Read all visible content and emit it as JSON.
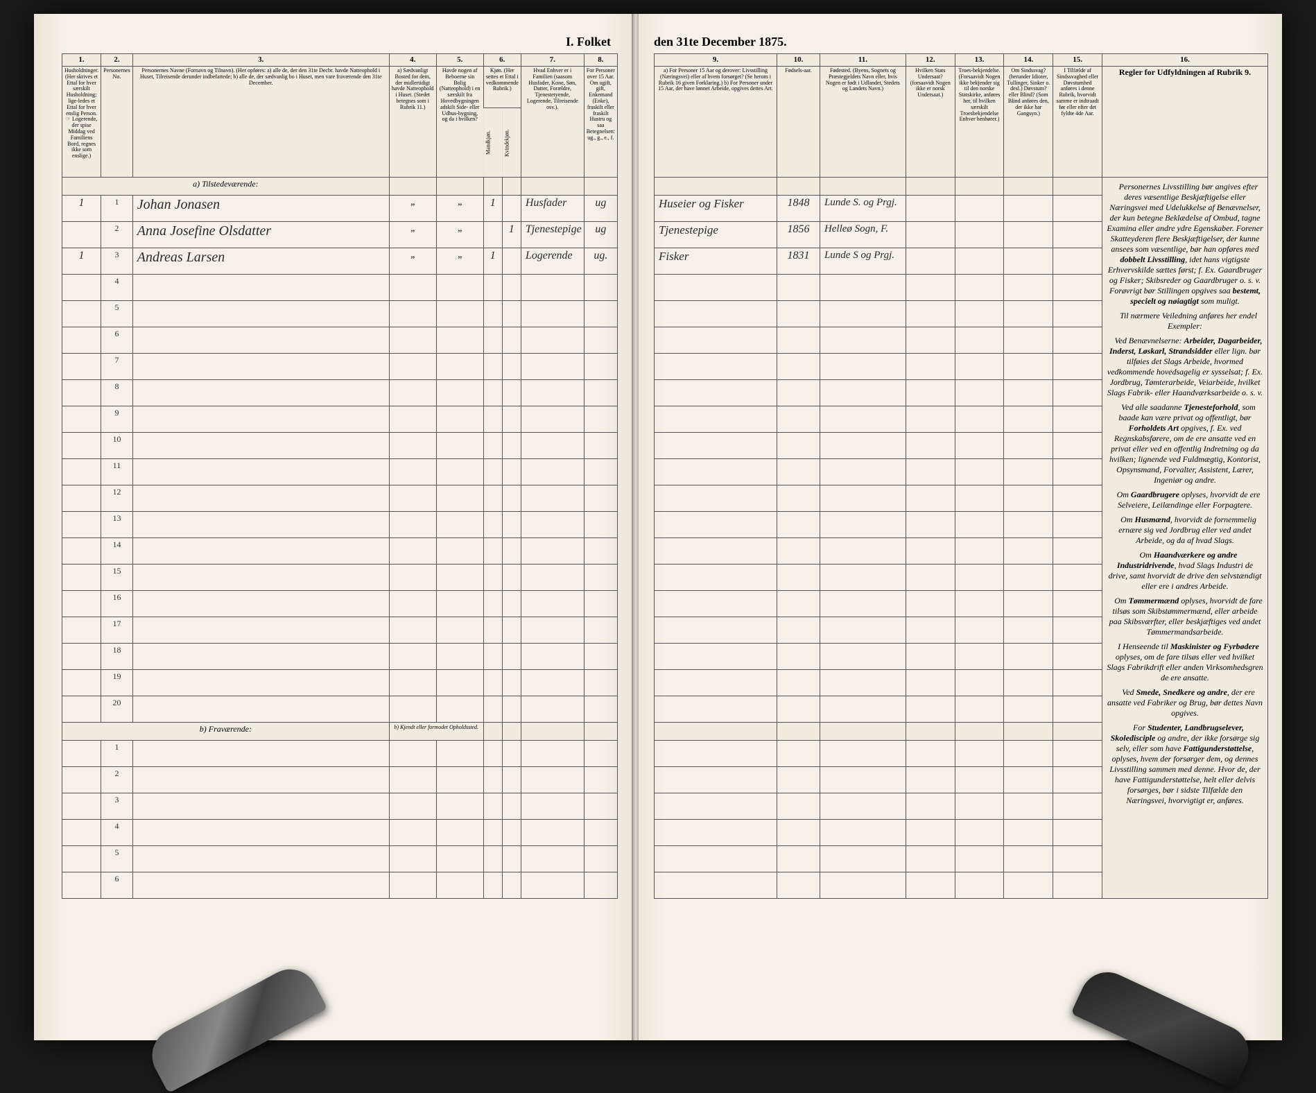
{
  "title_left": "I. Folket",
  "title_right": "den 31te December 1875.",
  "col_numbers_left": [
    "1.",
    "2.",
    "3.",
    "4.",
    "5.",
    "6.",
    "7.",
    "8."
  ],
  "col_numbers_right": [
    "9.",
    "10.",
    "11.",
    "12.",
    "13.",
    "14.",
    "15.",
    "16."
  ],
  "headers_left": {
    "c1": "Husholdninger.\n(Her skrives et Ettal for hver særskilt Husholdning; lige-ledes et Ettal for hver enslig Person.\n☞ Logerende, der spise Middag ved Familiens Bord, regnes ikke som enslige.)",
    "c2": "Personernes No.",
    "c3": "Personernes Navne (Fornavn og Tilnavn).\n(Her opføres:\na) alle de, der den 31te Decbr. havde Natteophold i Huset, Tilreisende derunder indbefattede;\nb) alle de, der sædvanlig bo i Huset, men vare fraværende den 31te December.",
    "c4": "a) Sædvanligt Bosted for dem, der midlertidigt havde Natteophold i Huset. (Stedet betegnes som i Rubrik 11.)",
    "c5": "Havde nogen af Beboerne sin Bolig (Natteophold) i en særskilt fra Hovedbygningen adskilt Side- eller Udhus-bygning, og da i hvilken?",
    "c6": "Kjøn. (Her settes et Ettal i vedkommende Rubrik.)",
    "c6a": "Mandkjøn.",
    "c6b": "Kvindekjøn.",
    "c7": "Hvad Enhver er i Familien\n(saasom Husfader, Kone, Søn, Datter, Forældre, Tjenestetyende, Logerende, Tilreisende osv.).",
    "c8": "For Personer over 15 Aar. Om ugift, gift, Enkemand (Enke), fraskilt eller fraskilt Hustru og saa Betegnelsen: ug., g., e., f."
  },
  "headers_right": {
    "c9": "a) For Personer 15 Aar og derover: Livsstilling (Næringsvei) eller af hvem forsørget? (Se herom i Rubrik 16 given Forklaring.)\nb) For Personer under 15 Aar, der have lønnet Arbeide, opgives dettes Art.",
    "c10": "Fødsels-aar.",
    "c11": "Fødested.\n(Byens, Sognets og Præstegjeldets Navn eller, hvis Nogen er født i Udlandet, Stedets og Landets Navn.)",
    "c12": "Hvilken Stats Undersaat?\n(forsaavidt Nogen ikke er norsk Undersaat.)",
    "c13": "Troes-bekjendelse. (Forsaavidt Nogen ikke bekjender sig til den norske Statskirke, anføres her, til hvilken særskilt Troesbekjendelse Enhver henhører.)",
    "c14": "Om Sindssvag? (herunder Idioter, Tullinger, Sinker o. desl.) Døvstum? eller Blind? (Som Blind anføres den, der ikke har Gangsyn.)",
    "c15": "I Tilfælde af Sindssvaghed eller Døvstumhed anføres i denne Rubrik, hvorvidt samme er indtraadt før eller efter det fyldte 4de Aar.",
    "c16": "Regler for Udfyldningen\naf\nRubrik 9."
  },
  "section_a": "a) Tilstedeværende:",
  "section_b": "b) Fraværende:",
  "section_b_note": "b) Kjendt eller formodet Opholdssted.",
  "rows_left": [
    {
      "n": "1",
      "hh": "1",
      "name": "Johan Jonasen",
      "c4": "„",
      "c5": "„",
      "m": "1",
      "k": "",
      "fam": "Husfader",
      "stat": "ug"
    },
    {
      "n": "2",
      "hh": "",
      "name": "Anna Josefine Olsdatter",
      "c4": "„",
      "c5": "„",
      "m": "",
      "k": "1",
      "fam": "Tjenestepige",
      "stat": "ug"
    },
    {
      "n": "3",
      "hh": "1",
      "name": "Andreas Larsen",
      "c4": "„",
      "c5": "„",
      "m": "1",
      "k": "",
      "fam": "Logerende",
      "stat": "ug."
    }
  ],
  "rows_right": [
    {
      "occ": "Huseier og Fisker",
      "year": "1848",
      "place": "Lunde S. og Prgj."
    },
    {
      "occ": "Tjenestepige",
      "year": "1856",
      "place": "Helleø Sogn, F."
    },
    {
      "occ": "Fisker",
      "year": "1831",
      "place": "Lunde S og Prgj."
    }
  ],
  "empty_rows_a": [
    "4",
    "5",
    "6",
    "7",
    "8",
    "9",
    "10",
    "11",
    "12",
    "13",
    "14",
    "15",
    "16",
    "17",
    "18",
    "19",
    "20"
  ],
  "empty_rows_b": [
    "1",
    "2",
    "3",
    "4",
    "5",
    "6"
  ],
  "rules_text": [
    "Personernes Livsstilling bør angives efter deres væsentlige Beskjæftigelse eller Næringsvei med Udelukkelse af Benævnelser, der kun betegne Beklædelse af Ombud, tagne Examina eller andre ydre Egenskaber. Forener Skatteyderen flere Beskjæftigelser, der kunne ansees som væsentlige, bør han opføres med <b>dobbelt Livsstilling</b>, idet hans vigtigste Erhvervskilde sættes først; f. Ex. Gaardbruger og Fisker; Skibsreder og Gaardbruger o. s. v. Forøvrigt bør Stillingen opgives saa <b>bestemt, specielt og nøiagtigt</b> som muligt.",
    "Til nærmere Veiledning anføres her endel Exempler:",
    "Ved Benævnelserne: <b>Arbeider, Dagarbeider, Inderst, Løskarl, Strandsidder</b> eller lign. bør tilføies det Slags Arbeide, hvormed vedkommende hovedsagelig er sysselsat; f. Ex. Jordbrug, Tømterarbeide, Veiarbeide, hvilket Slags Fabrik- eller Haandværksarbeide o. s. v.",
    "Ved alle saadanne <b>Tjenesteforhold</b>, som baade kan være privat og offentligt, bør <b>Forholdets Art</b> opgives, f. Ex. ved Regnskabsførere, om de ere ansatte ved en privat eller ved en offentlig Indretning og da hvilken; lignende ved Fuldmægtig, Kontorist, Opsynsmand, Forvalter, Assistent, Lærer, Ingeniør og andre.",
    "Om <b>Gaardbrugere</b> oplyses, hvorvidt de ere Selveiere, Leilændinge eller Forpagtere.",
    "Om <b>Husmænd</b>, hvorvidt de fornemmelig ernære sig ved Jordbrug eller ved andet Arbeide, og da af hvad Slags.",
    "Om <b>Haandværkere og andre Industridrivende</b>, hvad Slags Industri de drive, samt hvorvidt de drive den selvstændigt eller ere i andres Arbeide.",
    "Om <b>Tømmermænd</b> oplyses, hvorvidt de fare tilsøs som Skibstømmermænd, eller arbeide paa Skibsværfter, eller beskjæftiges ved andet Tømmermandsarbeide.",
    "I Henseende til <b>Maskinister og Fyrbødere</b> oplyses, om de fare tilsøs eller ved hvilket Slags Fabrikdrift eller anden Virksomhedsgren de ere ansatte.",
    "Ved <b>Smede, Snedkere og andre</b>, der ere ansatte ved Fabriker og Brug, bør dettes Navn opgives.",
    "For <b>Studenter, Landbrugselever, Skoledisciple</b> og andre, der ikke forsørge sig selv, eller som have <b>Fattigunderstøttelse</b>, oplyses, hvem der forsørger dem, og dennes Livsstilling sammen med denne. Hvor de, der have Fattigunderstøttelse, helt eller delvis forsørges, bør i sidste Tilfælde den Næringsvei, hvorvigtigt er, anføres."
  ]
}
